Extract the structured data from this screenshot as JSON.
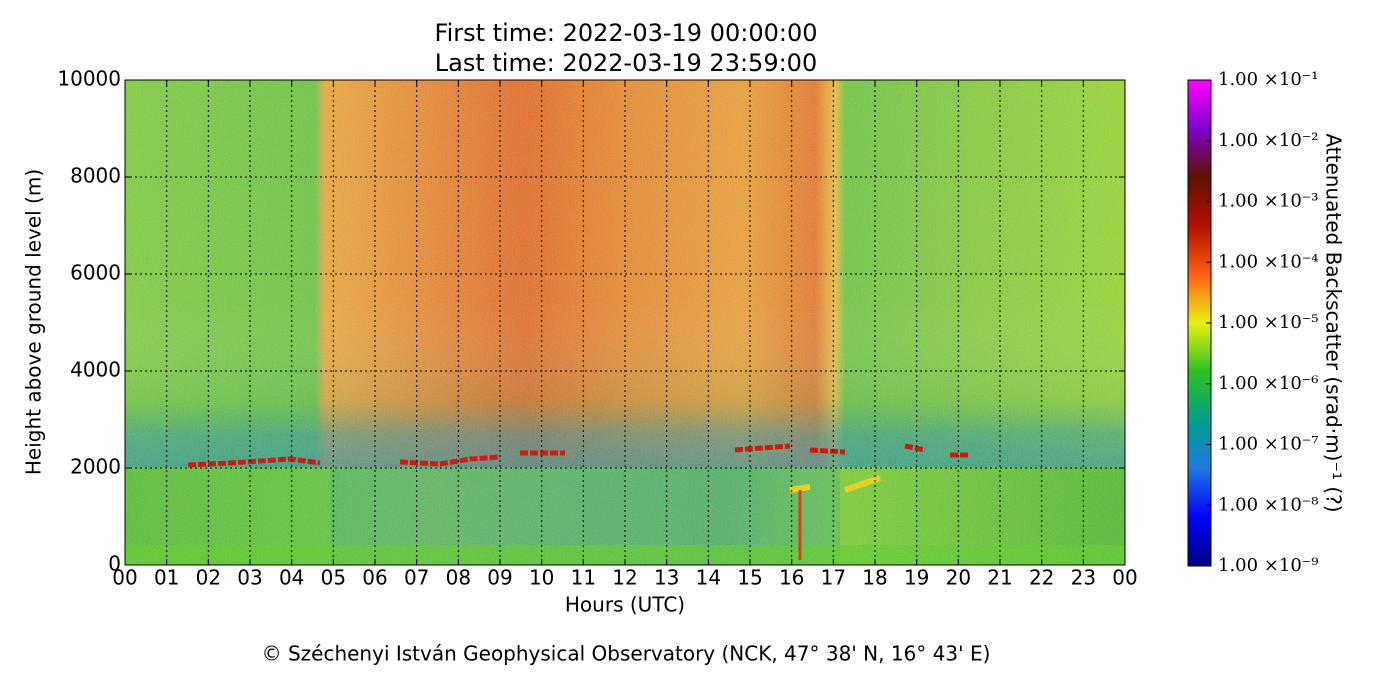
{
  "chart_data": {
    "type": "heatmap",
    "title": [
      "First time: 2022-03-19 00:00:00",
      "Last time: 2022-03-19 23:59:00"
    ],
    "xlabel": "Hours (UTC)",
    "ylabel": "Height above ground level (m)",
    "xlim": [
      0,
      24
    ],
    "xticks": [
      {
        "value": 0,
        "label": "00"
      },
      {
        "value": 1,
        "label": "01"
      },
      {
        "value": 2,
        "label": "02"
      },
      {
        "value": 3,
        "label": "03"
      },
      {
        "value": 4,
        "label": "04"
      },
      {
        "value": 5,
        "label": "05"
      },
      {
        "value": 6,
        "label": "06"
      },
      {
        "value": 7,
        "label": "07"
      },
      {
        "value": 8,
        "label": "08"
      },
      {
        "value": 9,
        "label": "09"
      },
      {
        "value": 10,
        "label": "10"
      },
      {
        "value": 11,
        "label": "11"
      },
      {
        "value": 12,
        "label": "12"
      },
      {
        "value": 13,
        "label": "13"
      },
      {
        "value": 14,
        "label": "14"
      },
      {
        "value": 15,
        "label": "15"
      },
      {
        "value": 16,
        "label": "16"
      },
      {
        "value": 17,
        "label": "17"
      },
      {
        "value": 18,
        "label": "18"
      },
      {
        "value": 19,
        "label": "19"
      },
      {
        "value": 20,
        "label": "20"
      },
      {
        "value": 21,
        "label": "21"
      },
      {
        "value": 22,
        "label": "22"
      },
      {
        "value": 23,
        "label": "23"
      },
      {
        "value": 24,
        "label": "00"
      }
    ],
    "ylim": [
      0,
      10000
    ],
    "yticks": [
      0,
      2000,
      4000,
      6000,
      8000,
      10000
    ],
    "grid": true,
    "colorbar": {
      "label": "Attenuated Backscatter (srad·m)⁻¹ (?)",
      "log": true,
      "lim": [
        1e-09,
        0.1
      ],
      "ticks": [
        {
          "value": 1e-09,
          "label": "1.00 ×10⁻⁹"
        },
        {
          "value": 1e-08,
          "label": "1.00 ×10⁻⁸"
        },
        {
          "value": 1e-07,
          "label": "1.00 ×10⁻⁷"
        },
        {
          "value": 1e-06,
          "label": "1.00 ×10⁻⁶"
        },
        {
          "value": 1e-05,
          "label": "1.00 ×10⁻⁵"
        },
        {
          "value": 0.0001,
          "label": "1.00 ×10⁻⁴"
        },
        {
          "value": 0.001,
          "label": "1.00 ×10⁻³"
        },
        {
          "value": 0.01,
          "label": "1.00 ×10⁻²"
        },
        {
          "value": 0.1,
          "label": "1.00 ×10⁻¹"
        }
      ],
      "colormap": [
        "#000080",
        "#0000ff",
        "#1e78e0",
        "#00a08c",
        "#30c020",
        "#e8f010",
        "#ff6010",
        "#b01000",
        "#601000",
        "#8000d0",
        "#ff00ff"
      ]
    },
    "footer": "© Széchenyi István Geophysical Observatory (NCK, 47° 38' N, 16° 43' E)"
  }
}
